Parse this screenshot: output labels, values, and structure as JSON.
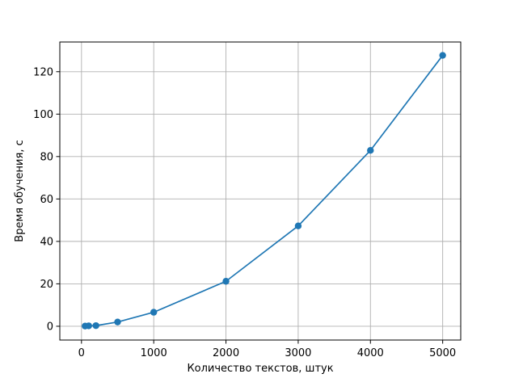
{
  "chart_data": {
    "type": "line",
    "xlabel": "Количество текстов, штук",
    "ylabel": "Время обучения, с",
    "xlim": [
      -300,
      5250
    ],
    "ylim": [
      -6.5,
      134
    ],
    "xticks": [
      0,
      1000,
      2000,
      3000,
      4000,
      5000
    ],
    "xtick_labels": [
      "0",
      "1000",
      "2000",
      "3000",
      "4000",
      "5000"
    ],
    "yticks": [
      0,
      20,
      40,
      60,
      80,
      100,
      120
    ],
    "ytick_labels": [
      "0",
      "20",
      "40",
      "60",
      "80",
      "100",
      "120"
    ],
    "grid": true,
    "legend": "none",
    "series": [
      {
        "color": "#1f77b4",
        "marker": "circle",
        "x": [
          50,
          100,
          200,
          500,
          1000,
          2000,
          3000,
          4000,
          5000
        ],
        "y": [
          0.1,
          0.2,
          0.3,
          2.0,
          6.6,
          21.2,
          47.3,
          82.9,
          127.7
        ]
      }
    ]
  }
}
